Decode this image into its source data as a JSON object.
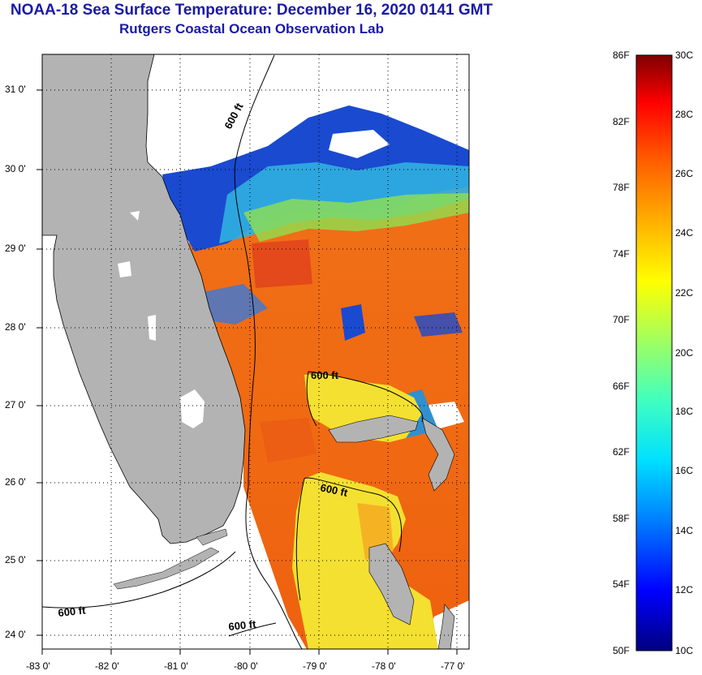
{
  "title": "NOAA-18 Sea Surface Temperature:  December 16, 2020 0141 GMT",
  "subtitle": "Rutgers Coastal Ocean Observation Lab",
  "map": {
    "lat_labels": [
      "31 0'",
      "30 0'",
      "29 0'",
      "28 0'",
      "27 0'",
      "26 0'",
      "25 0'",
      "24 0'"
    ],
    "lon_labels": [
      "-83 0'",
      "-82 0'",
      "-81 0'",
      "-80 0'",
      "-79 0'",
      "-78 0'",
      "-77 0'"
    ],
    "lat_range": [
      23.8,
      31.4
    ],
    "lon_range": [
      -83,
      -76.8
    ],
    "contour_labels": [
      "600 ft",
      "600 ft",
      "600 ft",
      "600 ft",
      "600 ft"
    ]
  },
  "colorbar": {
    "fahrenheit_labels": [
      "86F",
      "82F",
      "78F",
      "74F",
      "70F",
      "66F",
      "62F",
      "58F",
      "54F",
      "50F"
    ],
    "celsius_labels": [
      "30C",
      "28C",
      "26C",
      "24C",
      "22C",
      "20C",
      "18C",
      "16C",
      "14C",
      "12C",
      "10C"
    ],
    "colors": [
      "#00007f",
      "#0000ff",
      "#0080ff",
      "#00e0ff",
      "#40ffc0",
      "#a0ff60",
      "#ffff00",
      "#ffb000",
      "#ff6000",
      "#ff0000",
      "#7f0000"
    ]
  },
  "colors": {
    "land": "#b3b3b3",
    "title": "#1a1aa6",
    "warm_water": "#f26a14",
    "mid_water": "#f5a020",
    "cool_water": "#e8e040"
  }
}
